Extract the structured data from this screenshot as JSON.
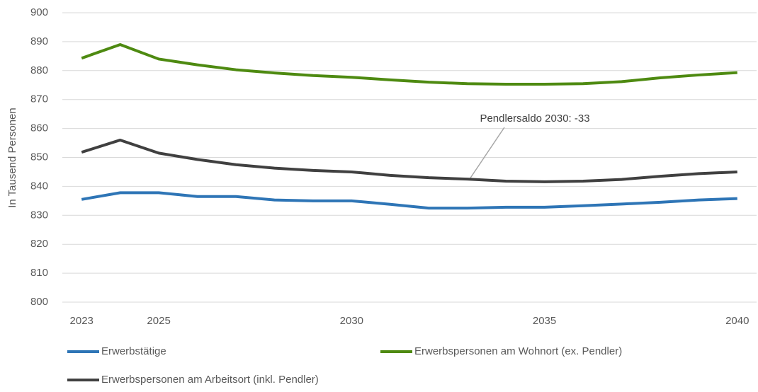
{
  "chart_data": {
    "type": "line",
    "y_label": "In Tausend Personen",
    "categories": [
      "2023",
      null,
      "2025",
      null,
      null,
      null,
      null,
      "2030",
      null,
      null,
      null,
      null,
      "2035",
      null,
      null,
      null,
      null,
      "2040"
    ],
    "series": [
      {
        "name": "Erwerbstätige",
        "color": "#2e75b6",
        "values": [
          835.5,
          837.8,
          837.8,
          836.5,
          836.5,
          835.3,
          835,
          835,
          833.8,
          832.5,
          832.5,
          832.8,
          832.8,
          833.3,
          833.9,
          834.5,
          835.3,
          835.8
        ]
      },
      {
        "name": "Erwerbspersonen am Wohnort (ex. Pendler)",
        "color": "#4e8a11",
        "values": [
          884.3,
          889,
          884,
          882,
          880.3,
          879.2,
          878.3,
          877.7,
          876.8,
          876,
          875.5,
          875.3,
          875.3,
          875.5,
          876.2,
          877.5,
          878.5,
          879.3
        ]
      },
      {
        "name": "Erwerbspersonen am Arbeitsort (inkl. Pendler)",
        "color": "#404040",
        "values": [
          851.8,
          856,
          851.5,
          849.3,
          847.5,
          846.3,
          845.5,
          845,
          843.8,
          843,
          842.5,
          841.8,
          841.6,
          841.8,
          842.4,
          843.5,
          844.4,
          845
        ]
      }
    ],
    "annotation": "Pendlersaldo 2030: -33",
    "ylim": [
      800,
      900
    ],
    "yticks": [
      800,
      810,
      820,
      830,
      840,
      850,
      860,
      870,
      880,
      890,
      900
    ],
    "grid": true
  }
}
